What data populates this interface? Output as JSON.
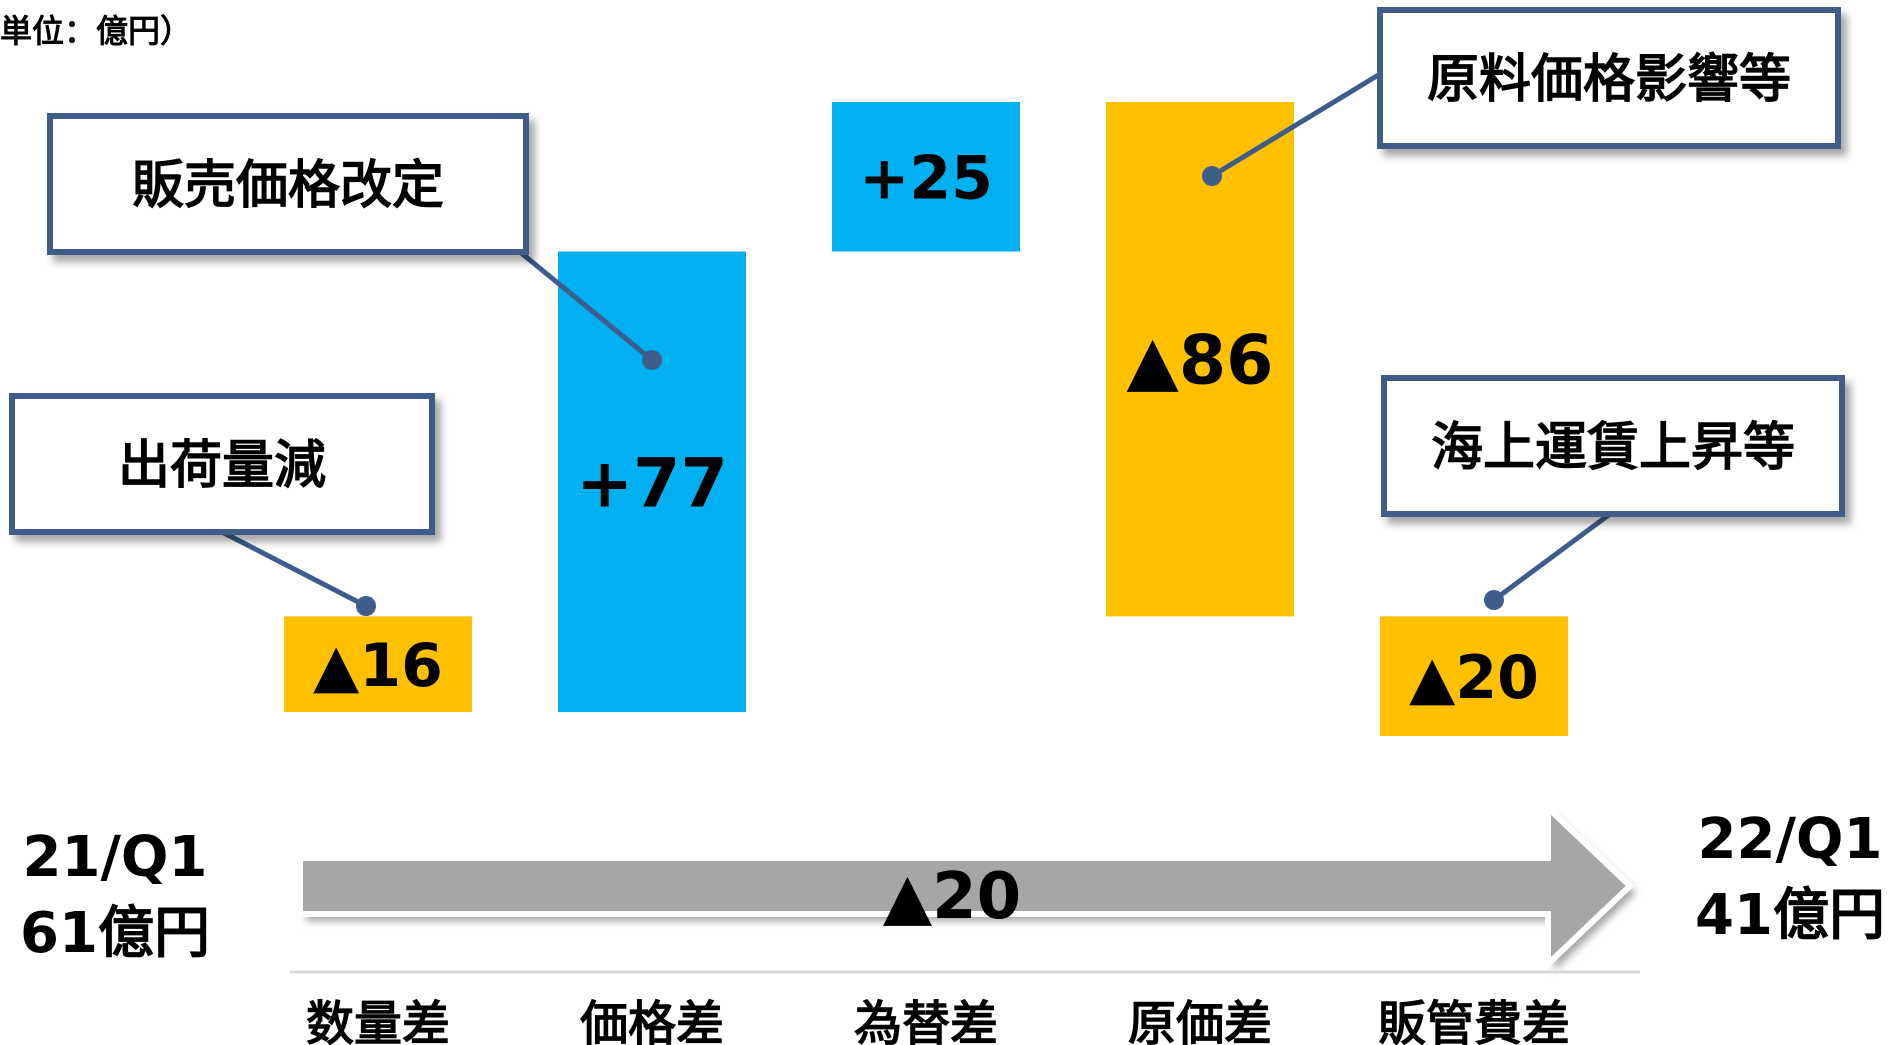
{
  "unit_label": "単位：億円）",
  "start": {
    "period": "21/Q1",
    "value_label": "61億円"
  },
  "end": {
    "period": "22/Q1",
    "value_label": "41億円"
  },
  "total_change_label": "▲20",
  "colors": {
    "increase": "#00B0F0",
    "decrease": "#FFC000",
    "arrow": "#A6A6A6",
    "callout_border": "#3F5D8A",
    "leader": "#3F5D8A",
    "axis_line": "#D9D9D9"
  },
  "chart_data": {
    "type": "bar",
    "title": "",
    "categories": [
      "数量差",
      "価格差",
      "為替差",
      "原価差",
      "販管費差"
    ],
    "values": [
      -16,
      77,
      25,
      -86,
      -20
    ],
    "value_labels": [
      "▲16",
      "+77",
      "+25",
      "▲86",
      "▲20"
    ],
    "start_value": 61,
    "end_value": 41,
    "annotations": [
      {
        "category": "数量差",
        "text": "出荷量減"
      },
      {
        "category": "価格差",
        "text": "販売価格改定"
      },
      {
        "category": "原価差",
        "text": "原料価格影響等"
      },
      {
        "category": "販管費差",
        "text": "海上運賃上昇等"
      }
    ]
  }
}
